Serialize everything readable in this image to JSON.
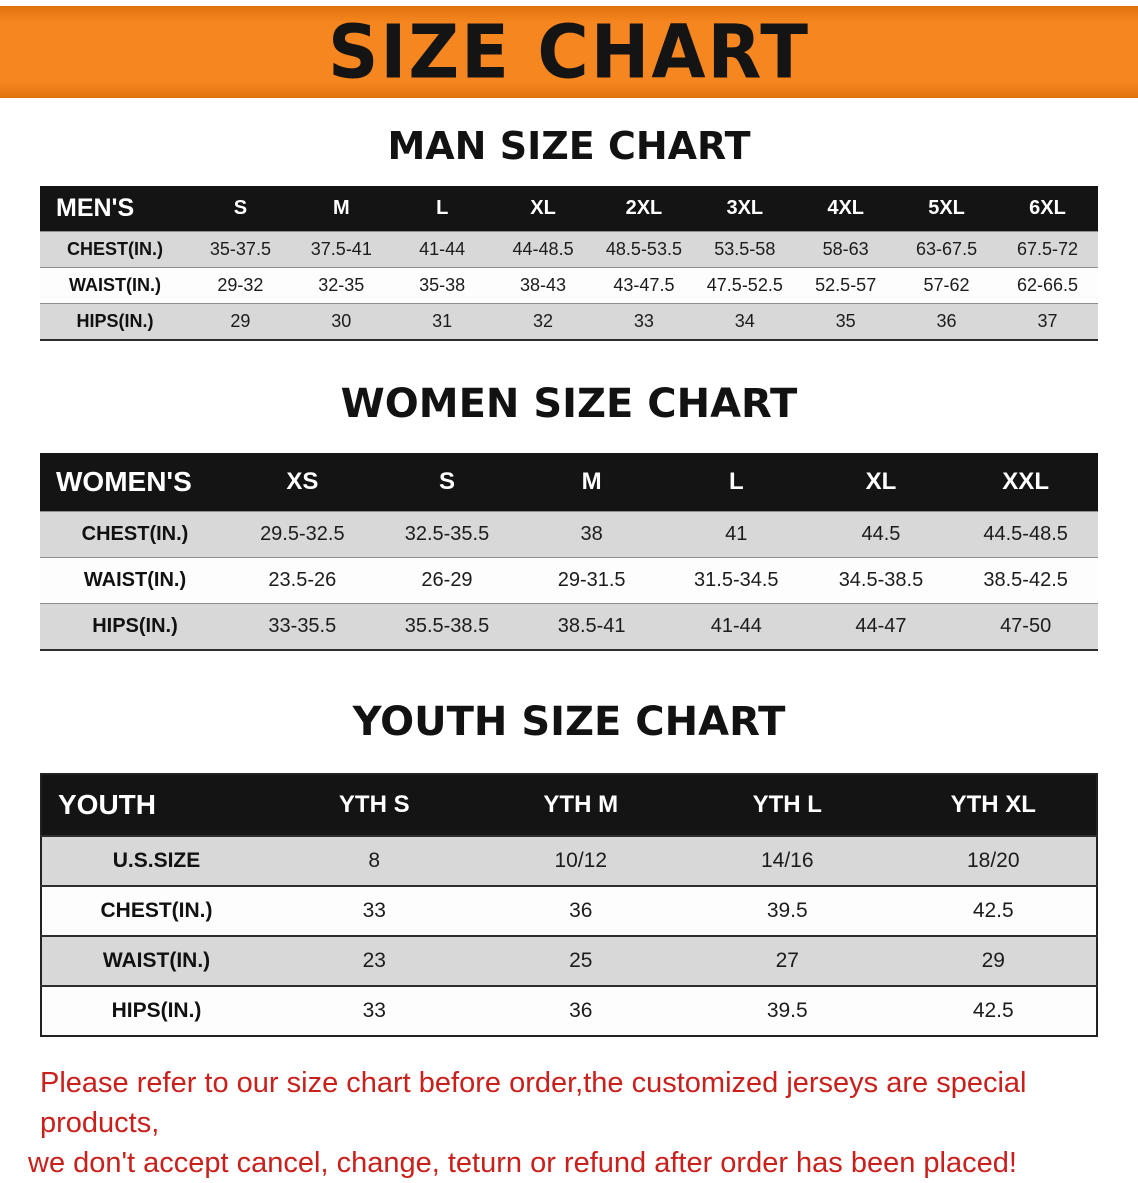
{
  "colors": {
    "banner-orange": "#f6861f",
    "banner-orange-dark": "#e0720e",
    "header-black": "#141414",
    "row-shade": "#d8d8d8",
    "disclaimer-red": "#c9201c"
  },
  "banner": {
    "title": "SIZE CHART"
  },
  "sections": [
    {
      "id": "men",
      "heading": "MAN SIZE CHART",
      "table": {
        "header_label": "MEN'S",
        "columns": [
          "S",
          "M",
          "L",
          "XL",
          "2XL",
          "3XL",
          "4XL",
          "5XL",
          "6XL"
        ],
        "rows": [
          {
            "label": "CHEST(IN.)",
            "values": [
              "35-37.5",
              "37.5-41",
              "41-44",
              "44-48.5",
              "48.5-53.5",
              "53.5-58",
              "58-63",
              "63-67.5",
              "67.5-72"
            ]
          },
          {
            "label": "WAIST(IN.)",
            "values": [
              "29-32",
              "32-35",
              "35-38",
              "38-43",
              "43-47.5",
              "47.5-52.5",
              "52.5-57",
              "57-62",
              "62-66.5"
            ]
          },
          {
            "label": "HIPS(IN.)",
            "values": [
              "29",
              "30",
              "31",
              "32",
              "33",
              "34",
              "35",
              "36",
              "37"
            ]
          }
        ]
      }
    },
    {
      "id": "women",
      "heading": "WOMEN SIZE CHART",
      "table": {
        "header_label": "WOMEN'S",
        "columns": [
          "XS",
          "S",
          "M",
          "L",
          "XL",
          "XXL"
        ],
        "rows": [
          {
            "label": "CHEST(IN.)",
            "values": [
              "29.5-32.5",
              "32.5-35.5",
              "38",
              "41",
              "44.5",
              "44.5-48.5"
            ]
          },
          {
            "label": "WAIST(IN.)",
            "values": [
              "23.5-26",
              "26-29",
              "29-31.5",
              "31.5-34.5",
              "34.5-38.5",
              "38.5-42.5"
            ]
          },
          {
            "label": "HIPS(IN.)",
            "values": [
              "33-35.5",
              "35.5-38.5",
              "38.5-41",
              "41-44",
              "44-47",
              "47-50"
            ]
          }
        ]
      }
    },
    {
      "id": "youth",
      "heading": "YOUTH SIZE CHART",
      "table": {
        "header_label": "YOUTH",
        "columns": [
          "YTH S",
          "YTH M",
          "YTH L",
          "YTH XL"
        ],
        "rows": [
          {
            "label": "U.S.SIZE",
            "values": [
              "8",
              "10/12",
              "14/16",
              "18/20"
            ]
          },
          {
            "label": "CHEST(IN.)",
            "values": [
              "33",
              "36",
              "39.5",
              "42.5"
            ]
          },
          {
            "label": "WAIST(IN.)",
            "values": [
              "23",
              "25",
              "27",
              "29"
            ]
          },
          {
            "label": "HIPS(IN.)",
            "values": [
              "33",
              "36",
              "39.5",
              "42.5"
            ]
          }
        ]
      }
    }
  ],
  "disclaimer": {
    "line1": "Please refer to our size chart before order,the customized jerseys are special products,",
    "line2": "we don't accept cancel, change, teturn or refund after order has been placed!"
  }
}
